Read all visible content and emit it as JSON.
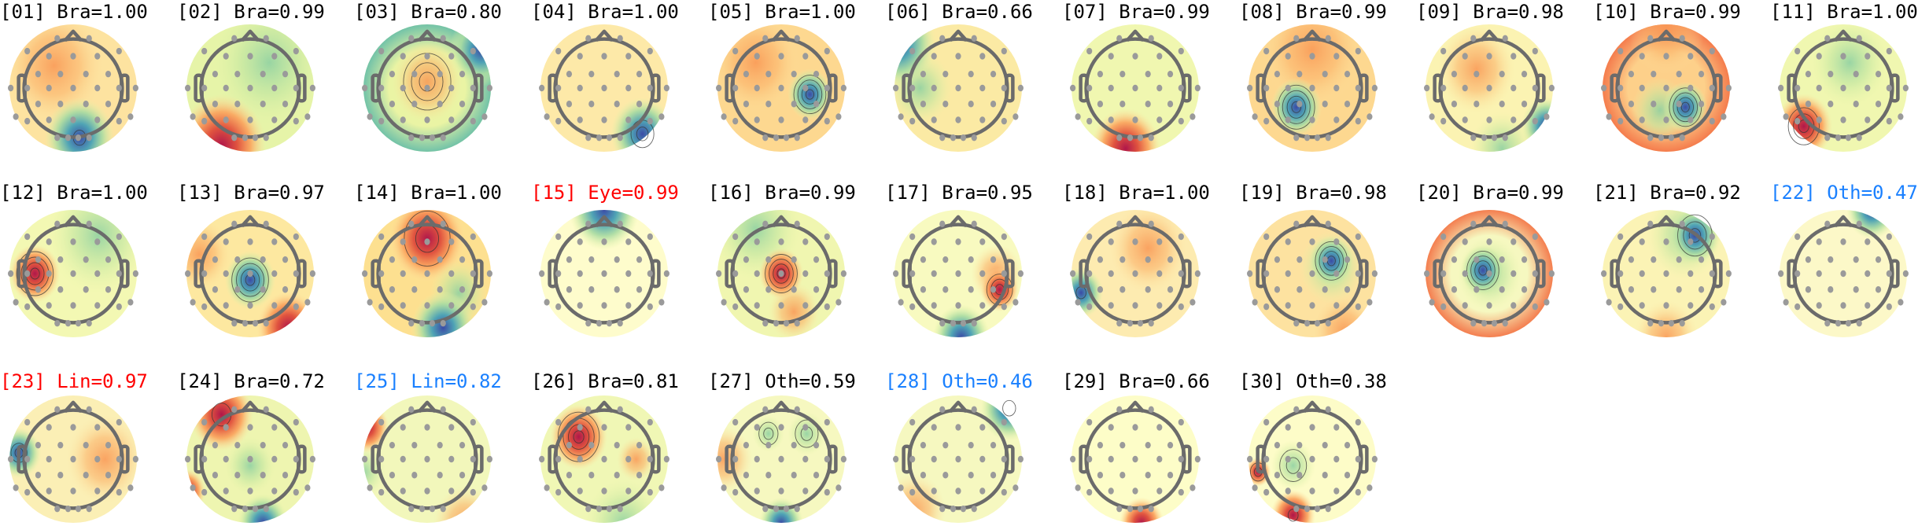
{
  "colors": {
    "default_label": "#000000",
    "red_label": "#ff0000",
    "blue_label": "#1a80ff",
    "electrode": "#9a9a9a",
    "head": "#6b6b6b"
  },
  "colormap": [
    "#3b4ca6",
    "#4fa3b5",
    "#a8dba2",
    "#fefebf",
    "#fba25c",
    "#e0533f",
    "#b0174a"
  ],
  "components": [
    {
      "label": "[01] Bra=1.00",
      "color": "#000000"
    },
    {
      "label": "[02] Bra=0.99",
      "color": "#000000"
    },
    {
      "label": "[03] Bra=0.80",
      "color": "#000000"
    },
    {
      "label": "[04] Bra=1.00",
      "color": "#000000"
    },
    {
      "label": "[05] Bra=1.00",
      "color": "#000000"
    },
    {
      "label": "[06] Bra=0.66",
      "color": "#000000"
    },
    {
      "label": "[07] Bra=0.99",
      "color": "#000000"
    },
    {
      "label": "[08] Bra=0.99",
      "color": "#000000"
    },
    {
      "label": "[09] Bra=0.98",
      "color": "#000000"
    },
    {
      "label": "[10] Bra=0.99",
      "color": "#000000"
    },
    {
      "label": "[11] Bra=1.00",
      "color": "#000000"
    },
    {
      "label": "[12] Bra=1.00",
      "color": "#000000"
    },
    {
      "label": "[13] Bra=0.97",
      "color": "#000000"
    },
    {
      "label": "[14] Bra=1.00",
      "color": "#000000"
    },
    {
      "label": "[15] Eye=0.99",
      "color": "#ff0000"
    },
    {
      "label": "[16] Bra=0.99",
      "color": "#000000"
    },
    {
      "label": "[17] Bra=0.95",
      "color": "#000000"
    },
    {
      "label": "[18] Bra=1.00",
      "color": "#000000"
    },
    {
      "label": "[19] Bra=0.98",
      "color": "#000000"
    },
    {
      "label": "[20] Bra=0.99",
      "color": "#000000"
    },
    {
      "label": "[21] Bra=0.92",
      "color": "#000000"
    },
    {
      "label": "[22] Oth=0.47",
      "color": "#1a80ff"
    },
    {
      "label": "[23] Lin=0.97",
      "color": "#ff0000"
    },
    {
      "label": "[24] Bra=0.72",
      "color": "#000000"
    },
    {
      "label": "[25] Lin=0.82",
      "color": "#1a80ff"
    },
    {
      "label": "[26] Bra=0.81",
      "color": "#000000"
    },
    {
      "label": "[27] Oth=0.59",
      "color": "#000000"
    },
    {
      "label": "[28] Oth=0.46",
      "color": "#1a80ff"
    },
    {
      "label": "[29] Bra=0.66",
      "color": "#000000"
    },
    {
      "label": "[30] Oth=0.38",
      "color": "#000000"
    }
  ]
}
